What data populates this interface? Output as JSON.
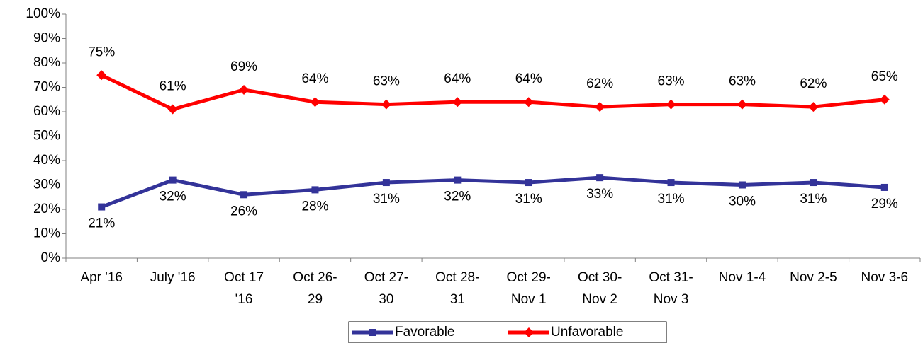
{
  "chart_data": {
    "type": "line",
    "categories": [
      "Apr '16",
      "July '16",
      "Oct 17\n'16",
      "Oct 26-\n29",
      "Oct 27-\n30",
      "Oct 28-\n31",
      "Oct 29-\nNov 1",
      "Oct 30-\nNov 2",
      "Oct 31-\nNov 3",
      "Nov 1-4",
      "Nov 2-5",
      "Nov 3-6"
    ],
    "series": [
      {
        "name": "Favorable",
        "color": "#333399",
        "marker": "square",
        "values": [
          21,
          32,
          26,
          28,
          31,
          32,
          31,
          33,
          31,
          30,
          31,
          29
        ],
        "value_labels": [
          "21%",
          "32%",
          "26%",
          "28%",
          "31%",
          "32%",
          "31%",
          "33%",
          "31%",
          "30%",
          "31%",
          "29%"
        ]
      },
      {
        "name": "Unfavorable",
        "color": "#ff0000",
        "marker": "diamond",
        "values": [
          75,
          61,
          69,
          64,
          63,
          64,
          64,
          62,
          63,
          63,
          62,
          65
        ],
        "value_labels": [
          "75%",
          "61%",
          "69%",
          "64%",
          "63%",
          "64%",
          "64%",
          "62%",
          "63%",
          "63%",
          "62%",
          "65%"
        ]
      }
    ],
    "ylim": [
      0,
      100
    ],
    "yticks": [
      {
        "value": 0,
        "label": "0%"
      },
      {
        "value": 10,
        "label": "10%"
      },
      {
        "value": 20,
        "label": "20%"
      },
      {
        "value": 30,
        "label": "30%"
      },
      {
        "value": 40,
        "label": "40%"
      },
      {
        "value": 50,
        "label": "50%"
      },
      {
        "value": 60,
        "label": "60%"
      },
      {
        "value": 70,
        "label": "70%"
      },
      {
        "value": 80,
        "label": "80%"
      },
      {
        "value": 90,
        "label": "90%"
      },
      {
        "value": 100,
        "label": "100%"
      }
    ],
    "grid": false,
    "legend": "bottom"
  }
}
